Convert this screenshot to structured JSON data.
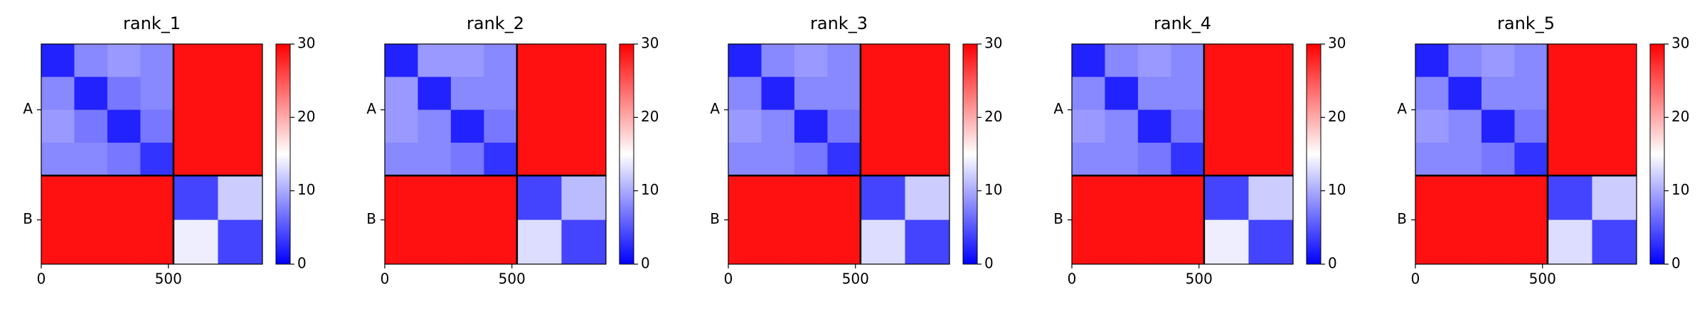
{
  "chart_data": [
    {
      "type": "heatmap",
      "title": "rank_1",
      "bins": [
        0,
        130,
        260,
        390,
        520,
        695,
        870
      ],
      "xlim": [
        0,
        870
      ],
      "ylim": [
        870,
        0
      ],
      "xticks": [
        0,
        500
      ],
      "yticks": [
        {
          "value": 260,
          "label": "A"
        },
        {
          "value": 695,
          "label": "B"
        }
      ],
      "chain_breaks": [
        520
      ],
      "values": [
        [
          2,
          8,
          9,
          8,
          29,
          29
        ],
        [
          8,
          2,
          7,
          8,
          29,
          29
        ],
        [
          9,
          7,
          2,
          7,
          29,
          29
        ],
        [
          8,
          8,
          7,
          3,
          29,
          29
        ],
        [
          29,
          29,
          29,
          29,
          4,
          12
        ],
        [
          29,
          29,
          29,
          29,
          14,
          4
        ]
      ],
      "clim": [
        0,
        30
      ],
      "cticks": [
        0,
        10,
        20,
        30
      ],
      "colormap": [
        "#0000ff",
        "#ffffff",
        "#ff0000"
      ]
    },
    {
      "type": "heatmap",
      "title": "rank_2",
      "bins": [
        0,
        130,
        260,
        390,
        520,
        695,
        870
      ],
      "xlim": [
        0,
        870
      ],
      "ylim": [
        870,
        0
      ],
      "xticks": [
        0,
        500
      ],
      "yticks": [
        {
          "value": 260,
          "label": "A"
        },
        {
          "value": 695,
          "label": "B"
        }
      ],
      "chain_breaks": [
        520
      ],
      "values": [
        [
          2,
          9,
          9,
          8,
          29,
          29
        ],
        [
          9,
          2,
          8,
          8,
          29,
          29
        ],
        [
          9,
          8,
          2,
          7,
          29,
          29
        ],
        [
          8,
          8,
          7,
          3,
          29,
          29
        ],
        [
          29,
          29,
          29,
          29,
          4,
          11
        ],
        [
          29,
          29,
          29,
          29,
          13,
          4
        ]
      ],
      "clim": [
        0,
        30
      ],
      "cticks": [
        0,
        10,
        20,
        30
      ],
      "colormap": [
        "#0000ff",
        "#ffffff",
        "#ff0000"
      ]
    },
    {
      "type": "heatmap",
      "title": "rank_3",
      "bins": [
        0,
        130,
        260,
        390,
        520,
        695,
        870
      ],
      "xlim": [
        0,
        870
      ],
      "ylim": [
        870,
        0
      ],
      "xticks": [
        0,
        500
      ],
      "yticks": [
        {
          "value": 260,
          "label": "A"
        },
        {
          "value": 695,
          "label": "B"
        }
      ],
      "chain_breaks": [
        520
      ],
      "values": [
        [
          2,
          8,
          9,
          8,
          29,
          29
        ],
        [
          8,
          2,
          8,
          8,
          29,
          29
        ],
        [
          9,
          8,
          2,
          7,
          29,
          29
        ],
        [
          8,
          8,
          7,
          3,
          29,
          29
        ],
        [
          29,
          29,
          29,
          29,
          4,
          12
        ],
        [
          29,
          29,
          29,
          29,
          13,
          4
        ]
      ],
      "clim": [
        0,
        30
      ],
      "cticks": [
        0,
        10,
        20,
        30
      ],
      "colormap": [
        "#0000ff",
        "#ffffff",
        "#ff0000"
      ]
    },
    {
      "type": "heatmap",
      "title": "rank_4",
      "bins": [
        0,
        130,
        260,
        390,
        520,
        695,
        870
      ],
      "xlim": [
        0,
        870
      ],
      "ylim": [
        870,
        0
      ],
      "xticks": [
        0,
        500
      ],
      "yticks": [
        {
          "value": 260,
          "label": "A"
        },
        {
          "value": 695,
          "label": "B"
        }
      ],
      "chain_breaks": [
        520
      ],
      "values": [
        [
          2,
          8,
          9,
          8,
          29,
          29
        ],
        [
          8,
          2,
          8,
          8,
          29,
          29
        ],
        [
          9,
          8,
          2,
          7,
          29,
          29
        ],
        [
          8,
          8,
          7,
          3,
          29,
          29
        ],
        [
          29,
          29,
          29,
          29,
          4,
          12
        ],
        [
          29,
          29,
          29,
          29,
          14,
          4
        ]
      ],
      "clim": [
        0,
        30
      ],
      "cticks": [
        0,
        10,
        20,
        30
      ],
      "colormap": [
        "#0000ff",
        "#ffffff",
        "#ff0000"
      ]
    },
    {
      "type": "heatmap",
      "title": "rank_5",
      "bins": [
        0,
        130,
        260,
        390,
        520,
        695,
        870
      ],
      "xlim": [
        0,
        870
      ],
      "ylim": [
        870,
        0
      ],
      "xticks": [
        0,
        500
      ],
      "yticks": [
        {
          "value": 260,
          "label": "A"
        },
        {
          "value": 695,
          "label": "B"
        }
      ],
      "chain_breaks": [
        520
      ],
      "values": [
        [
          2,
          8,
          9,
          8,
          29,
          29
        ],
        [
          8,
          2,
          8,
          8,
          29,
          29
        ],
        [
          9,
          8,
          2,
          7,
          29,
          29
        ],
        [
          8,
          8,
          7,
          3,
          29,
          29
        ],
        [
          29,
          29,
          29,
          29,
          4,
          12
        ],
        [
          29,
          29,
          29,
          29,
          13,
          4
        ]
      ],
      "clim": [
        0,
        30
      ],
      "cticks": [
        0,
        10,
        20,
        30
      ],
      "colormap": [
        "#0000ff",
        "#ffffff",
        "#ff0000"
      ]
    }
  ]
}
